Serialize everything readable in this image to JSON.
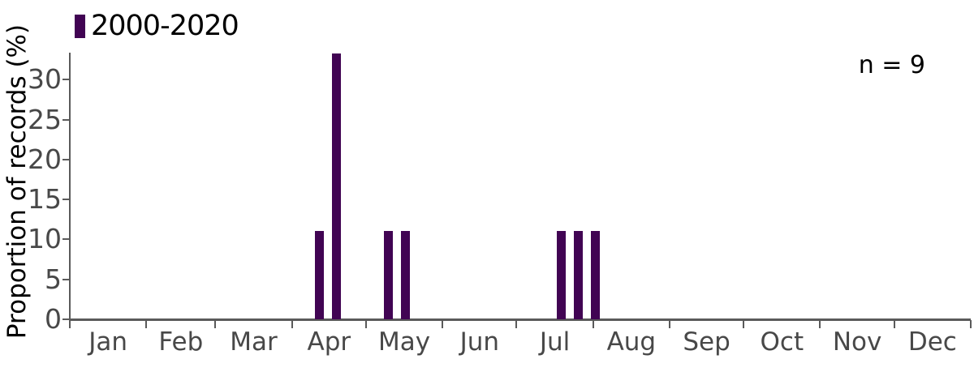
{
  "chart_data": {
    "type": "bar",
    "title": "",
    "xlabel": "",
    "ylabel": "Proportion of records (%)",
    "annotation": "n = 9",
    "legend": [
      {
        "label": "2000-2020",
        "color": "#410453"
      }
    ],
    "legend_position": "top-left",
    "grid": false,
    "y_ticks": [
      0,
      5,
      10,
      15,
      20,
      25,
      30
    ],
    "ylim": [
      0,
      33.4
    ],
    "x_axis": {
      "months": [
        "Jan",
        "Feb",
        "Mar",
        "Apr",
        "May",
        "Jun",
        "Jul",
        "Aug",
        "Sep",
        "Oct",
        "Nov",
        "Dec"
      ],
      "month_days": [
        31,
        28,
        31,
        30,
        31,
        30,
        31,
        31,
        30,
        31,
        30,
        31
      ],
      "range_days": [
        0,
        365
      ]
    },
    "bars": [
      {
        "date": "Apr 11",
        "day_of_year": 101,
        "value": 11.1
      },
      {
        "date": "Apr 18",
        "day_of_year": 108,
        "value": 33.3
      },
      {
        "date": "May 09",
        "day_of_year": 129,
        "value": 11.1
      },
      {
        "date": "May 16",
        "day_of_year": 136,
        "value": 11.1
      },
      {
        "date": "Jul 18",
        "day_of_year": 199,
        "value": 11.1
      },
      {
        "date": "Jul 25",
        "day_of_year": 206,
        "value": 11.1
      },
      {
        "date": "Aug 01",
        "day_of_year": 213,
        "value": 11.1
      }
    ],
    "bar_width_days": 3.6
  },
  "colors": {
    "bar": "#410453",
    "axis": "#5a5a5a",
    "tick_label": "#484848",
    "text": "#000000",
    "background": "#ffffff"
  }
}
